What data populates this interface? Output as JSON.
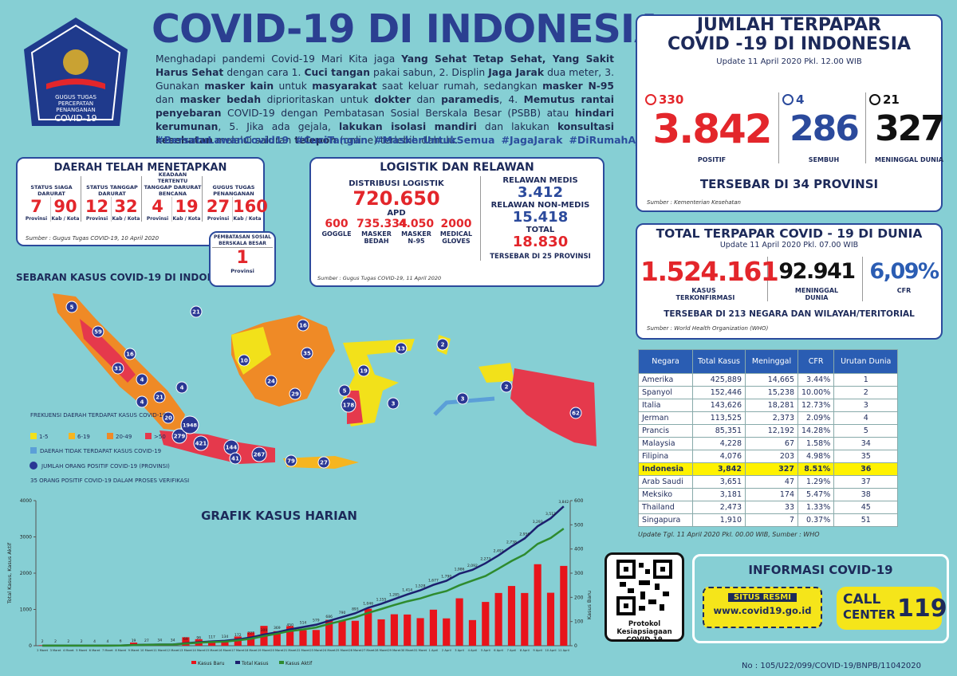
{
  "header": {
    "title": "COVID-19 DI INDONESIA",
    "logo_text": [
      "GUGUS TUGAS",
      "PERCEPATAN",
      "PENANGANAN",
      "COVID-19"
    ],
    "intro": [
      {
        "text": "Menghadapi pandemi Covid-19 Mari Kita jaga ",
        "bold": false
      },
      {
        "text": "Yang Sehat Tetap Sehat, Yang Sakit Harus Sehat",
        "bold": true
      },
      {
        "text": " dengan cara 1. ",
        "bold": false
      },
      {
        "text": "Cuci tangan",
        "bold": true
      },
      {
        "text": " pakai sabun, 2. Displin ",
        "bold": false
      },
      {
        "text": "Jaga Jarak",
        "bold": true
      },
      {
        "text": " dua meter, 3. Gunakan ",
        "bold": false
      },
      {
        "text": "masker kain",
        "bold": true
      },
      {
        "text": " untuk ",
        "bold": false
      },
      {
        "text": "masyarakat",
        "bold": true
      },
      {
        "text": " saat keluar rumah, sedangkan ",
        "bold": false
      },
      {
        "text": "masker N-95",
        "bold": true
      },
      {
        "text": " dan ",
        "bold": false
      },
      {
        "text": "masker bedah",
        "bold": true
      },
      {
        "text": " diprioritaskan untuk ",
        "bold": false
      },
      {
        "text": "dokter",
        "bold": true
      },
      {
        "text": " dan ",
        "bold": false
      },
      {
        "text": "paramedis",
        "bold": true
      },
      {
        "text": ", 4. ",
        "bold": false
      },
      {
        "text": "Memutus rantai penyebaran",
        "bold": true
      },
      {
        "text": " COVID-19 dengan Pembatasan Sosial Berskala Besar (PSBB) atau ",
        "bold": false
      },
      {
        "text": "hindari kerumunan",
        "bold": true
      },
      {
        "text": ", 5. Jika ada gejala, ",
        "bold": false
      },
      {
        "text": "lakukan isolasi mandiri",
        "bold": true
      },
      {
        "text": " dan lakukan ",
        "bold": false
      },
      {
        "text": "konsultasi kesehatan",
        "bold": true
      },
      {
        "text": " melalui saluran ",
        "bold": false
      },
      {
        "text": "telepon",
        "bold": true
      },
      {
        "text": " (online) terlebih dahulu.",
        "bold": false
      }
    ],
    "hashtags": [
      "#BersatuLawanCovid19",
      "#CuciTangan",
      "#MaskerUntukSemua",
      "#JagaJarak",
      "#DiRumahAja"
    ]
  },
  "daerah": {
    "title": "DAERAH TELAH MENETAPKAN",
    "groups": [
      {
        "label": "STATUS SIAGA DARURAT",
        "items": [
          {
            "value": "7",
            "unit": "Provinsi"
          },
          {
            "value": "90",
            "unit": "Kab / Kota"
          }
        ]
      },
      {
        "label": "STATUS TANGGAP DARURAT",
        "items": [
          {
            "value": "12",
            "unit": "Provinsi"
          },
          {
            "value": "32",
            "unit": "Kab / Kota"
          }
        ]
      },
      {
        "label": "KEADAAN TERTENTU TANGGAP DARURAT BENCANA",
        "items": [
          {
            "value": "4",
            "unit": "Provinsi"
          },
          {
            "value": "19",
            "unit": "Kab / Kota"
          }
        ]
      },
      {
        "label": "GUGUS TUGAS PENANGANAN",
        "items": [
          {
            "value": "27",
            "unit": "Provinsi"
          },
          {
            "value": "160",
            "unit": "Kab / Kota"
          }
        ]
      }
    ],
    "source": "Sumber : Gugus Tugas COVID-19, 10 April 2020",
    "psbb": {
      "label": "PEMBATASAN SOSIAL BERSKALA BESAR",
      "value": "1",
      "unit": "Provinsi"
    }
  },
  "logistik": {
    "title": "LOGISTIK DAN RELAWAN",
    "distribusi_label": "DISTRIBUSI LOGISTIK",
    "distribusi_value": "720.650",
    "apd_label": "APD",
    "apd": [
      {
        "value": "600",
        "label": "GOGGLE"
      },
      {
        "value": "735.334",
        "label": "MASKER BEDAH"
      },
      {
        "value": "4.050",
        "label": "MASKER N-95"
      },
      {
        "value": "2000",
        "label": "MEDICAL GLOVES"
      }
    ],
    "relawan": [
      {
        "label": "RELAWAN MEDIS",
        "value": "3.412"
      },
      {
        "label": "RELAWAN NON-MEDIS",
        "value": "15.418"
      },
      {
        "label": "TOTAL",
        "value": "18.830"
      }
    ],
    "spread": "TERSEBAR DI 25 PROVINSI",
    "source": "Sumber : Gugus Tugas COVID-19, 11 April 2020"
  },
  "indonesia": {
    "title": [
      "JUMLAH TERPAPAR",
      "COVID -19 DI INDONESIA"
    ],
    "update": "Update 11 April 2020 Pkl. 12.00 WIB",
    "stats": [
      {
        "delta": "330",
        "value": "3.842",
        "label": "POSITIF",
        "color": "#e3262b"
      },
      {
        "delta": "4",
        "value": "286",
        "label": "SEMBUH",
        "color": "#2b4a9c"
      },
      {
        "delta": "21",
        "value": "327",
        "label": "MENINGGAL DUNIA",
        "color": "#111111"
      }
    ],
    "spread": "TERSEBAR DI 34 PROVINSI",
    "source": "Sumber : Kementerian Kesehatan"
  },
  "dunia": {
    "title": "TOTAL TERPAPAR COVID - 19 DI DUNIA",
    "update": "Update 11 April 2020 Pkl. 07.00 WIB",
    "stats": [
      {
        "value": "1.524.161",
        "label": "KASUS TERKONFIRMASI",
        "color": "#e3262b"
      },
      {
        "value": "92.941",
        "label": "MENINGGAL DUNIA",
        "color": "#111111"
      },
      {
        "value": "6,09%",
        "label": "CFR",
        "color": "#2b5db3"
      }
    ],
    "spread": "TERSEBAR DI 213 NEGARA DAN WILAYAH/TERITORIAL",
    "source": "Sumber : World Health Organization (WHO)"
  },
  "table": {
    "headers": [
      "Negara",
      "Total Kasus",
      "Meninggal",
      "CFR",
      "Urutan Dunia"
    ],
    "rows": [
      [
        "Amerika",
        "425,889",
        "14,665",
        "3.44%",
        "1"
      ],
      [
        "Spanyol",
        "152,446",
        "15,238",
        "10.00%",
        "2"
      ],
      [
        "Italia",
        "143,626",
        "18,281",
        "12.73%",
        "3"
      ],
      [
        "Jerman",
        "113,525",
        "2,373",
        "2.09%",
        "4"
      ],
      [
        "Prancis",
        "85,351",
        "12,192",
        "14.28%",
        "5"
      ],
      [
        "Malaysia",
        "4,228",
        "67",
        "1.58%",
        "34"
      ],
      [
        "Filipina",
        "4,076",
        "203",
        "4.98%",
        "35"
      ],
      [
        "Indonesia",
        "3,842",
        "327",
        "8.51%",
        "36"
      ],
      [
        "Arab Saudi",
        "3,651",
        "47",
        "1.29%",
        "37"
      ],
      [
        "Meksiko",
        "3,181",
        "174",
        "5.47%",
        "38"
      ],
      [
        "Thailand",
        "2,473",
        "33",
        "1.33%",
        "45"
      ],
      [
        "Singapura",
        "1,910",
        "7",
        "0.37%",
        "51"
      ]
    ],
    "highlight_row": 7,
    "note": "Update Tgl. 11 April 2020 Pkl. 00.00 WIB, Sumber : WHO"
  },
  "map": {
    "title": "SEBARAN KASUS COVID-19 DI INDONESIA",
    "legend_title": "FREKUENSI DAERAH TERDAPAT KASUS COVID-19",
    "legend": [
      {
        "label": "1-5",
        "color": "#f2e11a"
      },
      {
        "label": "6-19",
        "color": "#f6b51f"
      },
      {
        "label": "20-49",
        "color": "#ef8a26"
      },
      {
        "label": ">50",
        "color": "#e5394c"
      }
    ],
    "no_case": {
      "label": "DAERAH TIDAK TERDAPAT KASUS COVID-19",
      "color": "#5b9fd8"
    },
    "circle_label": "JUMLAH ORANG POSITIF COVID-19 (PROVINSI)",
    "note": "35 ORANG POSITIF COVID-19 DALAM PROSES VERIFIKASI",
    "province_counts": [
      "5",
      "59",
      "16",
      "31",
      "4",
      "21",
      "4",
      "20",
      "4",
      "279",
      "1948",
      "421",
      "144",
      "41",
      "267",
      "79",
      "27",
      "21",
      "10",
      "24",
      "35",
      "16",
      "29",
      "13",
      "2",
      "19",
      "5",
      "178",
      "3",
      "3",
      "2",
      "62"
    ]
  },
  "chart_data": {
    "type": "combo",
    "title": "GRAFIK KASUS HARIAN",
    "y_label": "Total Kasus, Kasus Aktif",
    "y2_label": "Kasus Baru",
    "categories": [
      "2 Maret",
      "3 Maret",
      "4 Maret",
      "5 Maret",
      "6 Maret",
      "7 Maret",
      "8 Maret",
      "9 Maret",
      "10 Maret",
      "11 Maret",
      "12 Maret",
      "13 Maret",
      "14 Maret",
      "15 Maret",
      "16 Maret",
      "17 Maret",
      "18 Maret",
      "19 Maret",
      "20 Maret",
      "21 Maret",
      "22 Maret",
      "23 Maret",
      "24 Maret",
      "25 Maret",
      "26 Maret",
      "27 Maret",
      "28 Maret",
      "29 Maret",
      "30 Maret",
      "31 Maret",
      "1 April",
      "2 April",
      "3 April",
      "4 April",
      "5 April",
      "6 April",
      "7 April",
      "8 April",
      "9 April",
      "10 April",
      "11 April"
    ],
    "ylim": [
      0,
      4000
    ],
    "yticks": [
      0,
      1000,
      2000,
      3000,
      4000
    ],
    "y2lim": [
      0,
      600
    ],
    "y2ticks": [
      0,
      100,
      200,
      300,
      400,
      500,
      600
    ],
    "series": [
      {
        "name": "Kasus Baru",
        "kind": "bar",
        "color": "#e8141b",
        "axis": "y2",
        "values": [
          2,
          0,
          0,
          0,
          2,
          0,
          2,
          13,
          8,
          7,
          0,
          35,
          27,
          21,
          17,
          38,
          55,
          82,
          60,
          81,
          64,
          65,
          107,
          104,
          103,
          153,
          109,
          130,
          129,
          114,
          149,
          113,
          196,
          106,
          181,
          218,
          247,
          218,
          337,
          219,
          330
        ]
      },
      {
        "name": "Total Kasus",
        "kind": "line",
        "color": "#1c1f6e",
        "values": [
          2,
          2,
          2,
          2,
          4,
          4,
          6,
          19,
          27,
          34,
          34,
          69,
          96,
          117,
          134,
          172,
          227,
          309,
          369,
          450,
          514,
          579,
          686,
          790,
          893,
          1046,
          1155,
          1285,
          1414,
          1528,
          1677,
          1790,
          1986,
          2092,
          2273,
          2491,
          2738,
          2956,
          3293,
          3512,
          3842
        ],
        "value_labels": [
          "2",
          "2",
          "2",
          "2",
          "4",
          "4",
          "6",
          "19",
          "27",
          "34",
          "34",
          "69",
          "96",
          "117",
          "134",
          "172",
          "227",
          "309",
          "369",
          "450",
          "514",
          "579",
          "686",
          "790",
          "893",
          "1,046",
          "1,155",
          "1,285",
          "1,414",
          "1,528",
          "1,677",
          "1,790",
          "1,986",
          "2,092",
          "2,273",
          "2,491",
          "2,738",
          "2,956",
          "3,293",
          "3,512",
          "3,842"
        ]
      },
      {
        "name": "Kasus Aktif",
        "kind": "line",
        "color": "#2e8b2e",
        "values": [
          2,
          2,
          2,
          2,
          4,
          4,
          6,
          17,
          25,
          31,
          31,
          61,
          83,
          102,
          112,
          148,
          192,
          265,
          331,
          405,
          447,
          503,
          600,
          688,
          781,
          905,
          1011,
          1123,
          1223,
          1303,
          1417,
          1506,
          1666,
          1795,
          1921,
          2125,
          2335,
          2517,
          2806,
          2969,
          3229
        ]
      }
    ]
  },
  "qr": {
    "caption": "Protokol Kesiapsiagaan COVID-19"
  },
  "info": {
    "title": "INFORMASI COVID-19",
    "situs": "SITUS RESMI",
    "url": "www.covid19.go.id",
    "call": "CALL",
    "center": "CENTER",
    "number": "119"
  },
  "footer": "No : 105/U22/099/COVID-19/BNPB/11042020"
}
